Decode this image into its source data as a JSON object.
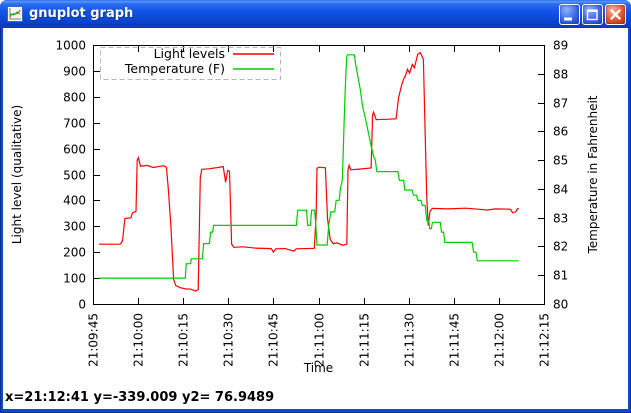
{
  "window": {
    "title": "gnuplot graph",
    "controls": {
      "minimize": "minimize",
      "maximize": "maximize",
      "close": "close"
    }
  },
  "status_bar": {
    "text": "x=21:12:41 y=-339.009 y2= 76.9489"
  },
  "colors": {
    "light_series": "#ff0000",
    "temperature_series": "#00cc00",
    "legend_border": "#b8b8b8",
    "axis": "#000000"
  },
  "chart_data": {
    "type": "line",
    "title": "",
    "xlabel": "Time",
    "ylabel_left": "Light level (qualitative)",
    "ylabel_right": "Temperature in Fahrenheit",
    "x_tick_labels": [
      "21:09:45",
      "21:10:00",
      "21:10:15",
      "21:10:30",
      "21:10:45",
      "21:11:00",
      "21:11:15",
      "21:11:30",
      "21:11:45",
      "21:12:00",
      "21:12:15"
    ],
    "x_range_seconds": [
      0,
      150
    ],
    "x_tick_interval_seconds": 15,
    "ylim_left": [
      0,
      1000
    ],
    "ytick_left": 100,
    "ylim_right": [
      80,
      89
    ],
    "ytick_right": 1,
    "grid": false,
    "legend": {
      "position": "top-left",
      "border": "dashed",
      "entries": [
        {
          "label": "Light levels",
          "color": "#ff0000",
          "axis": "left"
        },
        {
          "label": "Temperature (F)",
          "color": "#00cc00",
          "axis": "right"
        }
      ]
    },
    "series": [
      {
        "name": "Light levels",
        "slug": "light-levels",
        "color": "#ff0000",
        "axis": "left",
        "points": [
          [
            2,
            231
          ],
          [
            9,
            231
          ],
          [
            9.8,
            242
          ],
          [
            10.6,
            330
          ],
          [
            12.6,
            333
          ],
          [
            13.1,
            352
          ],
          [
            14.3,
            357
          ],
          [
            14.7,
            556
          ],
          [
            15.1,
            565
          ],
          [
            15.8,
            532
          ],
          [
            18,
            535
          ],
          [
            20,
            527
          ],
          [
            23.5,
            534
          ],
          [
            24.4,
            528
          ],
          [
            25,
            450
          ],
          [
            25.9,
            300
          ],
          [
            26.8,
            95
          ],
          [
            27.5,
            72
          ],
          [
            29,
            63
          ],
          [
            31,
            58
          ],
          [
            32.6,
            57
          ],
          [
            34.2,
            50
          ],
          [
            35,
            56
          ],
          [
            35.7,
            488
          ],
          [
            36.2,
            520
          ],
          [
            38.5,
            522
          ],
          [
            41.5,
            527
          ],
          [
            43.3,
            531
          ],
          [
            44.1,
            470
          ],
          [
            44.8,
            516
          ],
          [
            45.4,
            512
          ],
          [
            46.1,
            232
          ],
          [
            46.8,
            219
          ],
          [
            50,
            221
          ],
          [
            54,
            216
          ],
          [
            59.3,
            214
          ],
          [
            60,
            200
          ],
          [
            60.8,
            213
          ],
          [
            64,
            214
          ],
          [
            66.8,
            204
          ],
          [
            67.6,
            213
          ],
          [
            73.6,
            215
          ],
          [
            74.2,
            340
          ],
          [
            74.5,
            524
          ],
          [
            75.2,
            528
          ],
          [
            77.3,
            526
          ],
          [
            78,
            330
          ],
          [
            78.9,
            250
          ],
          [
            79.9,
            233
          ],
          [
            81.2,
            236
          ],
          [
            83,
            227
          ],
          [
            84.4,
            231
          ],
          [
            84.8,
            518
          ],
          [
            85.2,
            536
          ],
          [
            85.7,
            518
          ],
          [
            88.5,
            521
          ],
          [
            92.5,
            525
          ],
          [
            93,
            730
          ],
          [
            93.3,
            741
          ],
          [
            94.2,
            712
          ],
          [
            97.5,
            713
          ],
          [
            100.8,
            715
          ],
          [
            101.6,
            795
          ],
          [
            102.7,
            848
          ],
          [
            103.3,
            868
          ],
          [
            103.9,
            881
          ],
          [
            104.6,
            906
          ],
          [
            105.3,
            891
          ],
          [
            106.2,
            925
          ],
          [
            106.9,
            912
          ],
          [
            107.5,
            940
          ],
          [
            108,
            964
          ],
          [
            108.8,
            971
          ],
          [
            109.4,
            958
          ],
          [
            109.9,
            944
          ],
          [
            110.4,
            700
          ],
          [
            111,
            420
          ],
          [
            111.5,
            303
          ],
          [
            112.1,
            358
          ],
          [
            112.8,
            369
          ],
          [
            118,
            367
          ],
          [
            124,
            370
          ],
          [
            128,
            366
          ],
          [
            131,
            363
          ],
          [
            134,
            367
          ],
          [
            138.8,
            366
          ],
          [
            139.6,
            352
          ],
          [
            140.6,
            356
          ],
          [
            141.2,
            368
          ],
          [
            141.6,
            367
          ]
        ]
      },
      {
        "name": "Temperature (F)",
        "slug": "temperature",
        "color": "#00cc00",
        "axis": "right",
        "points": [
          [
            2,
            80.9
          ],
          [
            30.7,
            80.9
          ],
          [
            31,
            81.4
          ],
          [
            32.4,
            81.4
          ],
          [
            32.7,
            81.57
          ],
          [
            36.4,
            81.57
          ],
          [
            36.8,
            82.1
          ],
          [
            38.7,
            82.1
          ],
          [
            39.1,
            82.5
          ],
          [
            39.8,
            82.5
          ],
          [
            40.1,
            82.73
          ],
          [
            67.6,
            82.73
          ],
          [
            68.1,
            83.26
          ],
          [
            71,
            83.26
          ],
          [
            71.4,
            82.73
          ],
          [
            72.3,
            82.73
          ],
          [
            72.7,
            83.26
          ],
          [
            73.7,
            83.26
          ],
          [
            74.1,
            82.73
          ],
          [
            74.5,
            82.05
          ],
          [
            77.9,
            82.05
          ],
          [
            78.4,
            82.73
          ],
          [
            79.1,
            83.2
          ],
          [
            80.4,
            83.2
          ],
          [
            80.9,
            83.6
          ],
          [
            81.9,
            83.6
          ],
          [
            82.3,
            84.02
          ],
          [
            82.9,
            84.3
          ],
          [
            83.2,
            85.25
          ],
          [
            83.5,
            86.3
          ],
          [
            83.8,
            87.2
          ],
          [
            84.1,
            88.05
          ],
          [
            84.4,
            88.6
          ],
          [
            84.7,
            88.66
          ],
          [
            86.9,
            88.66
          ],
          [
            87.4,
            88.3
          ],
          [
            88.1,
            87.9
          ],
          [
            88.9,
            87.45
          ],
          [
            89.6,
            86.9
          ],
          [
            90.6,
            86.45
          ],
          [
            91.6,
            85.95
          ],
          [
            92.6,
            85.45
          ],
          [
            93.4,
            85.1
          ],
          [
            93.9,
            85.0
          ],
          [
            94.4,
            84.6
          ],
          [
            101.4,
            84.6
          ],
          [
            101.9,
            84.3
          ],
          [
            103.3,
            84.3
          ],
          [
            103.7,
            83.96
          ],
          [
            106.1,
            83.96
          ],
          [
            106.6,
            83.78
          ],
          [
            107.6,
            83.78
          ],
          [
            108.1,
            83.6
          ],
          [
            109.1,
            83.6
          ],
          [
            109.5,
            83.43
          ],
          [
            110.5,
            83.43
          ],
          [
            111,
            82.9
          ],
          [
            111.7,
            82.9
          ],
          [
            112,
            82.62
          ],
          [
            112.5,
            82.62
          ],
          [
            112.9,
            82.84
          ],
          [
            115.5,
            82.84
          ],
          [
            115.9,
            82.5
          ],
          [
            116.6,
            82.5
          ],
          [
            117,
            82.14
          ],
          [
            126.1,
            82.14
          ],
          [
            126.6,
            81.8
          ],
          [
            127.4,
            81.8
          ],
          [
            127.8,
            81.5
          ],
          [
            141.6,
            81.5
          ]
        ]
      }
    ]
  }
}
